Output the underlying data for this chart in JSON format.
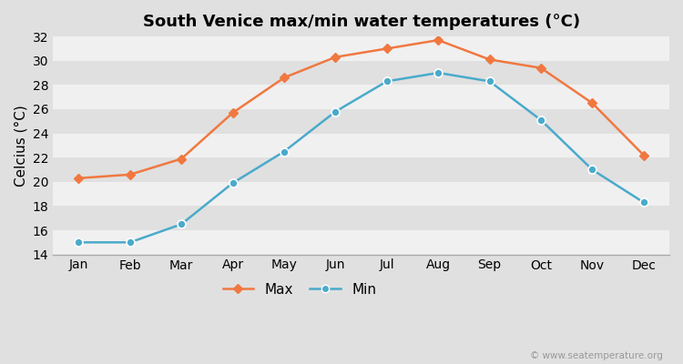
{
  "title": "South Venice max/min water temperatures (°C)",
  "xlabel_months": [
    "Jan",
    "Feb",
    "Mar",
    "Apr",
    "May",
    "Jun",
    "Jul",
    "Aug",
    "Sep",
    "Oct",
    "Nov",
    "Dec"
  ],
  "max_values": [
    20.3,
    20.6,
    21.9,
    25.7,
    28.6,
    30.3,
    31.0,
    31.7,
    30.1,
    29.4,
    26.5,
    22.2
  ],
  "min_values": [
    15.0,
    15.0,
    16.5,
    19.9,
    22.5,
    25.8,
    28.3,
    29.0,
    28.3,
    25.1,
    21.0,
    18.3
  ],
  "max_color": "#f07840",
  "min_color": "#4aaacb",
  "fig_bg_color": "#e0e0e0",
  "plot_bg_color": "#f0f0f0",
  "stripe_color_light": "#f0f0f0",
  "stripe_color_dark": "#e0e0e0",
  "ylabel": "Celcius (°C)",
  "ylim": [
    14,
    32
  ],
  "yticks": [
    14,
    16,
    18,
    20,
    22,
    24,
    26,
    28,
    30,
    32
  ],
  "legend_max": "Max",
  "legend_min": "Min",
  "watermark": "© www.seatemperature.org",
  "title_fontsize": 13,
  "axis_fontsize": 10,
  "ylabel_fontsize": 11
}
